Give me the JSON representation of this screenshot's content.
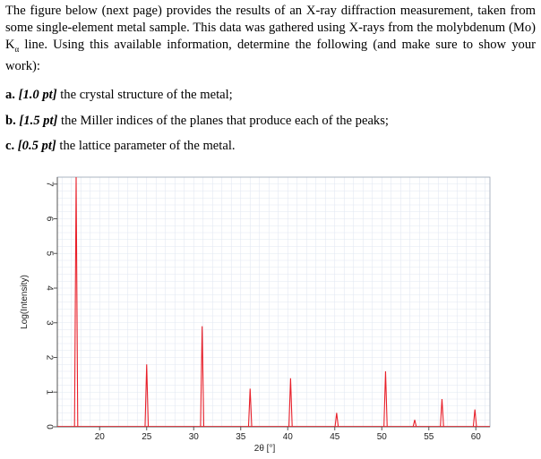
{
  "intro": {
    "text_before_k": "The figure below (next page) provides the results of an X-ray diffraction measurement, taken from some single-element metal sample.  This data was gathered using X-rays from the molybdenum (Mo) K",
    "k_subscript": "α",
    "text_after_k": " line. Using this available information, determine the following (and make sure to show your work):"
  },
  "questions": [
    {
      "label": "a.",
      "points": "[1.0 pt]",
      "text": " the crystal structure of the metal;"
    },
    {
      "label": "b.",
      "points": "[1.5 pt]",
      "text": " the Miller indices of the planes that produce each of the peaks;"
    },
    {
      "label": "c.",
      "points": "[0.5 pt]",
      "text": " the lattice parameter of the metal."
    }
  ],
  "chart_data": {
    "type": "line",
    "xlabel": "2θ [°]",
    "ylabel": "Log(Intensity)",
    "xlim": [
      15.5,
      61.5
    ],
    "ylim": [
      0,
      7.2
    ],
    "xticks": [
      20,
      25,
      30,
      35,
      40,
      45,
      50,
      55,
      60
    ],
    "yticks": [
      0,
      1,
      2,
      3,
      4,
      5,
      6,
      7
    ],
    "grid": true,
    "line_color": "#e8202a",
    "peaks": [
      {
        "x": 17.5,
        "y": 7.2
      },
      {
        "x": 25.0,
        "y": 1.8
      },
      {
        "x": 30.9,
        "y": 2.9
      },
      {
        "x": 36.0,
        "y": 1.1
      },
      {
        "x": 40.3,
        "y": 1.4
      },
      {
        "x": 45.2,
        "y": 0.4
      },
      {
        "x": 50.4,
        "y": 1.6
      },
      {
        "x": 53.5,
        "y": 0.2
      },
      {
        "x": 56.4,
        "y": 0.8
      },
      {
        "x": 59.9,
        "y": 0.5
      }
    ]
  }
}
